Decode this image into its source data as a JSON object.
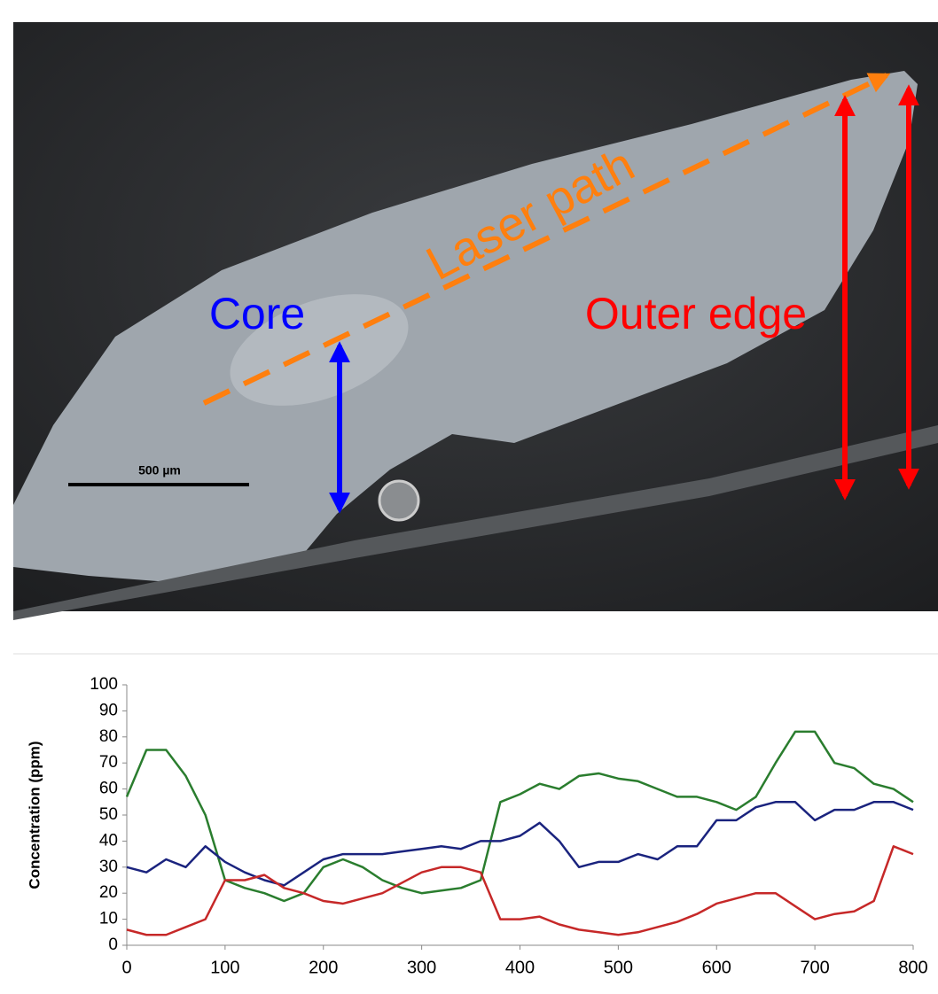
{
  "chart_data": {
    "type": "line",
    "annotations": [
      "Core",
      "Outer edge",
      "Laser path",
      "500 µm"
    ],
    "y_label": "Concentration (ppm)",
    "x": [
      0,
      20,
      40,
      60,
      80,
      100,
      120,
      140,
      160,
      180,
      200,
      220,
      240,
      260,
      280,
      300,
      320,
      340,
      360,
      380,
      400,
      420,
      440,
      460,
      480,
      500,
      520,
      540,
      560,
      580,
      600,
      620,
      640,
      660,
      680,
      700,
      720,
      740,
      760,
      780,
      800
    ],
    "series": [
      {
        "color": "#2a7d2e",
        "values": [
          57,
          75,
          75,
          65,
          50,
          25,
          22,
          20,
          17,
          20,
          30,
          33,
          30,
          25,
          22,
          20,
          21,
          22,
          25,
          55,
          58,
          62,
          60,
          65,
          66,
          64,
          63,
          60,
          57,
          57,
          55,
          52,
          57,
          70,
          82,
          82,
          70,
          68,
          62,
          60,
          55
        ]
      },
      {
        "color": "#1a237e",
        "values": [
          30,
          28,
          33,
          30,
          38,
          32,
          28,
          25,
          23,
          28,
          33,
          35,
          35,
          35,
          36,
          37,
          38,
          37,
          40,
          40,
          42,
          47,
          40,
          30,
          32,
          32,
          35,
          33,
          38,
          38,
          48,
          48,
          53,
          55,
          55,
          48,
          52,
          52,
          55,
          55,
          52
        ]
      },
      {
        "color": "#c62828",
        "values": [
          6,
          4,
          4,
          7,
          10,
          25,
          25,
          27,
          22,
          20,
          17,
          16,
          18,
          20,
          24,
          28,
          30,
          30,
          28,
          10,
          10,
          11,
          8,
          6,
          5,
          4,
          5,
          7,
          9,
          12,
          16,
          18,
          20,
          20,
          15,
          10,
          12,
          13,
          17,
          38,
          35
        ]
      }
    ],
    "xlim": [
      0,
      800
    ],
    "xticks": [
      0,
      100,
      200,
      300,
      400,
      500,
      600,
      700,
      800
    ],
    "ylim": [
      0,
      100
    ],
    "yticks": [
      0,
      10,
      20,
      30,
      40,
      50,
      60,
      70,
      80,
      90,
      100
    ],
    "grid": false
  }
}
